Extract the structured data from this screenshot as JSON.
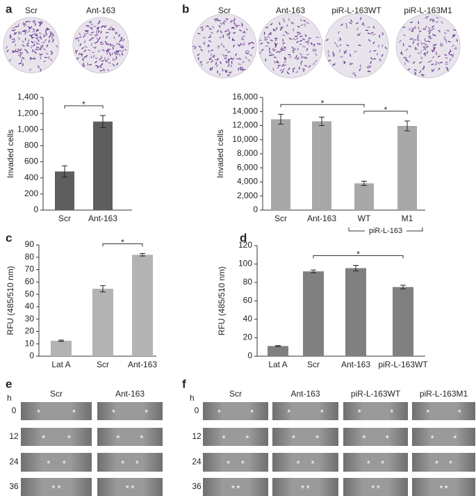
{
  "panel_letters": [
    "a",
    "b",
    "c",
    "d",
    "e",
    "f"
  ],
  "invasion_images": [
    {
      "labels": [
        "Scr",
        "Ant-163"
      ]
    },
    {
      "labels": [
        "Scr",
        "Ant-163",
        "piR-L-163WT",
        "piR-L-163M1"
      ]
    }
  ],
  "wound_images": [
    {
      "time_header": "h",
      "times": [
        "0",
        "12",
        "24",
        "36"
      ],
      "labels": [
        "Scr",
        "Ant-163"
      ],
      "marker": "*"
    },
    {
      "time_header": "h",
      "times": [
        "0",
        "12",
        "24",
        "36"
      ],
      "labels": [
        "Scr",
        "Ant-163",
        "piR-L-163WT",
        "piR-L-163M1"
      ],
      "marker": "*"
    }
  ],
  "chart_data": [
    {
      "type": "bar",
      "ylabel": "Invaded cells",
      "categories": [
        "Scr",
        "Ant-163"
      ],
      "values": [
        480,
        1100
      ],
      "errors": [
        70,
        75
      ],
      "color": "#5e5e5e",
      "ylim": [
        0,
        1400
      ],
      "yticks": [
        0,
        200,
        400,
        600,
        800,
        {
          "value": 1000,
          "label": "1,000"
        },
        {
          "value": 1200,
          "label": "1,200"
        },
        {
          "value": 1400,
          "label": "1,400"
        }
      ],
      "brackets": [
        {
          "between": [
            "Scr",
            "Ant-163"
          ],
          "label": "*"
        }
      ]
    },
    {
      "type": "bar",
      "ylabel": "Invaded cells",
      "categories": [
        "Scr",
        "Ant-163",
        "WT",
        "M1"
      ],
      "values": [
        12900,
        12600,
        3800,
        11950
      ],
      "errors": [
        700,
        600,
        300,
        700
      ],
      "color": "#a8a8a8",
      "ylim": [
        0,
        16000
      ],
      "yticks": [
        0,
        {
          "value": 2000,
          "label": "2,000"
        },
        {
          "value": 4000,
          "label": "4,000"
        },
        {
          "value": 6000,
          "label": "6,000"
        },
        {
          "value": 8000,
          "label": "8,000"
        },
        {
          "value": 10000,
          "label": "10,000"
        },
        {
          "value": 12000,
          "label": "12,000"
        },
        {
          "value": 14000,
          "label": "14,000"
        },
        {
          "value": 16000,
          "label": "16,000"
        }
      ],
      "brackets": [
        {
          "between": [
            "Scr",
            "WT"
          ],
          "label": "*"
        },
        {
          "between": [
            "WT",
            "M1"
          ],
          "label": "*"
        }
      ],
      "group_labels": [
        {
          "between": [
            "WT",
            "M1"
          ],
          "label": "piR-L-163"
        }
      ]
    },
    {
      "type": "bar",
      "ylabel": "RFU (485/510 nm)",
      "categories": [
        "Lat A",
        "Scr",
        "Ant-163"
      ],
      "values": [
        12.5,
        54.5,
        82
      ],
      "errors": [
        0.5,
        2.5,
        1
      ],
      "color": "#b3b3b3",
      "ylim": [
        0,
        90
      ],
      "yticks": [
        0,
        10,
        20,
        30,
        40,
        50,
        60,
        70,
        80,
        90
      ],
      "brackets": [
        {
          "between": [
            "Scr",
            "Ant-163"
          ],
          "label": "*"
        }
      ]
    },
    {
      "type": "bar",
      "ylabel": "RFU (485/510 nm)",
      "categories": [
        "Lat A",
        "Scr",
        "Ant-163",
        "piR-L-163WT"
      ],
      "values": [
        11,
        92,
        95.5,
        75
      ],
      "errors": [
        0.5,
        1.5,
        3,
        2
      ],
      "color": "#808080",
      "ylim": [
        0,
        120
      ],
      "yticks": [
        0,
        20,
        40,
        60,
        80,
        100,
        120
      ],
      "brackets": [
        {
          "between": [
            "Scr",
            "piR-L-163WT"
          ],
          "label": "*"
        }
      ]
    }
  ]
}
